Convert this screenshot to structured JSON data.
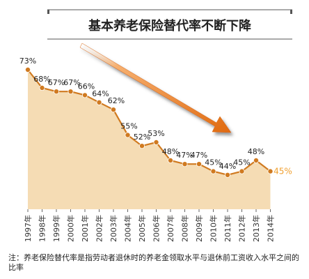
{
  "chart_data": {
    "type": "area",
    "title": "基本养老保险替代率不断下降",
    "categories": [
      "1997年",
      "1998年",
      "1999年",
      "2000年",
      "2001年",
      "2002年",
      "2003年",
      "2004年",
      "2005年",
      "2006年",
      "2007年",
      "2008年",
      "2009年",
      "2010年",
      "2011年",
      "2012年",
      "2013年",
      "2014年"
    ],
    "series": [
      {
        "values": [
          73,
          68,
          67,
          67,
          66,
          64,
          62,
          55,
          52,
          53,
          48,
          47,
          47,
          45,
          44,
          45,
          48,
          45
        ]
      }
    ],
    "data_labels": [
      "73%",
      "68%",
      "67%",
      "67%",
      "66%",
      "64%",
      "62%",
      "55%",
      "52%",
      "53%",
      "48%",
      "47%",
      "47%",
      "45%",
      "44%",
      "45%",
      "48%",
      "45%"
    ],
    "highlight_last_color": "#f0a030",
    "line_color": "#d07a20",
    "area_color": "#f5dcb4",
    "arrow_color": "#e07818",
    "annotation": "趋势箭头",
    "note": "注：养老保险替代率是指劳动者退休时的养老金领取水平与退休前工资收入水平之间的比率",
    "ylim": [
      0,
      80
    ],
    "grid": false
  }
}
